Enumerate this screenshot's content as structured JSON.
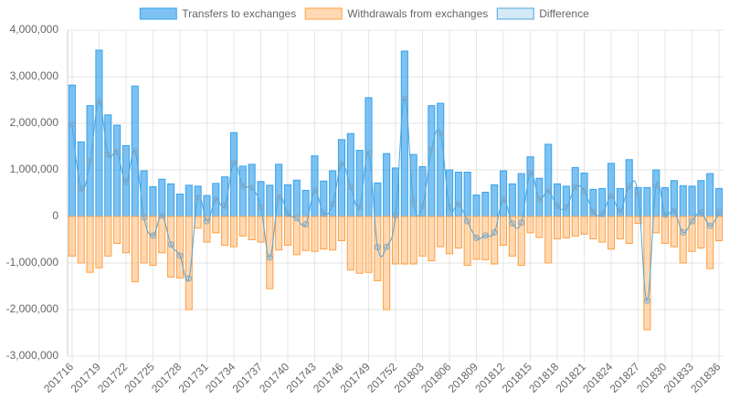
{
  "chart_data": {
    "type": "bar",
    "categories": [
      "201716",
      null,
      null,
      "201719",
      null,
      null,
      "201722",
      null,
      null,
      "201725",
      null,
      null,
      "201728",
      null,
      null,
      "201731",
      null,
      null,
      "201734",
      null,
      null,
      "201737",
      null,
      null,
      "201740",
      null,
      null,
      "201743",
      null,
      null,
      "201746",
      null,
      null,
      "201749",
      null,
      null,
      "201752",
      null,
      null,
      "201803",
      null,
      null,
      "201806",
      null,
      null,
      "201809",
      null,
      null,
      "201812",
      null,
      null,
      "201815",
      null,
      null,
      "201818",
      null,
      null,
      "201821",
      null,
      null,
      "201824",
      null,
      null,
      "201827",
      null,
      null,
      "201830",
      null,
      null,
      "201833",
      null,
      null,
      "201836"
    ],
    "series": [
      {
        "name": "Transfers to exchanges",
        "color": "#36a2eb",
        "values": [
          2820000,
          1600000,
          2380000,
          3570000,
          2180000,
          1960000,
          1520000,
          2800000,
          980000,
          640000,
          800000,
          700000,
          480000,
          670000,
          650000,
          450000,
          710000,
          850000,
          1800000,
          1080000,
          1120000,
          750000,
          670000,
          1120000,
          680000,
          780000,
          560000,
          1300000,
          760000,
          980000,
          1650000,
          1780000,
          1420000,
          2550000,
          720000,
          1350000,
          1040000,
          3550000,
          1330000,
          1070000,
          2380000,
          2430000,
          1000000,
          950000,
          950000,
          460000,
          520000,
          680000,
          980000,
          700000,
          920000,
          1280000,
          820000,
          1550000,
          700000,
          650000,
          1050000,
          930000,
          580000,
          600000,
          1140000,
          600000,
          1220000,
          620000,
          620000,
          1000000,
          620000,
          770000,
          660000,
          650000,
          770000,
          920000,
          600000
        ]
      },
      {
        "name": "Withdrawals from exchanges",
        "color": "#ff9f40",
        "values": [
          -850000,
          -1000000,
          -1200000,
          -1100000,
          -850000,
          -580000,
          -780000,
          -1400000,
          -1000000,
          -1050000,
          -780000,
          -1300000,
          -1320000,
          -2000000,
          -250000,
          -550000,
          -350000,
          -620000,
          -650000,
          -420000,
          -500000,
          -550000,
          -1550000,
          -720000,
          -620000,
          -820000,
          -730000,
          -750000,
          -700000,
          -720000,
          -520000,
          -1150000,
          -1220000,
          -1200000,
          -1380000,
          -2000000,
          -1020000,
          -1020000,
          -1020000,
          -850000,
          -950000,
          -650000,
          -800000,
          -680000,
          -1050000,
          -920000,
          -930000,
          -1020000,
          -620000,
          -850000,
          -1050000,
          -350000,
          -450000,
          -1000000,
          -480000,
          -460000,
          -420000,
          -380000,
          -480000,
          -550000,
          -700000,
          -480000,
          -580000,
          -150000,
          -2430000,
          -350000,
          -580000,
          -650000,
          -1000000,
          -750000,
          -680000,
          -1120000,
          -520000
        ]
      },
      {
        "name": "Difference",
        "type": "line",
        "color": "#4ea6dc",
        "values": [
          1970000,
          600000,
          1180000,
          2470000,
          1330000,
          1380000,
          740000,
          1400000,
          -20000,
          -410000,
          20000,
          -600000,
          -840000,
          -1330000,
          400000,
          -100000,
          360000,
          230000,
          1150000,
          660000,
          620000,
          200000,
          -880000,
          400000,
          60000,
          -40000,
          -170000,
          550000,
          60000,
          260000,
          1130000,
          630000,
          200000,
          1350000,
          -660000,
          -650000,
          20000,
          2530000,
          310000,
          220000,
          1430000,
          1780000,
          200000,
          270000,
          -100000,
          -460000,
          -410000,
          -340000,
          360000,
          -150000,
          -130000,
          930000,
          370000,
          550000,
          220000,
          190000,
          630000,
          550000,
          100000,
          50000,
          440000,
          120000,
          640000,
          470000,
          -1810000,
          650000,
          40000,
          120000,
          -340000,
          -100000,
          90000,
          -200000,
          80000
        ]
      }
    ],
    "ylim": [
      -3000000,
      4000000
    ],
    "yticks": [
      {
        "value": -3000000,
        "label": "-3,000,000"
      },
      {
        "value": -2000000,
        "label": "-2,000,000"
      },
      {
        "value": -1000000,
        "label": "-1,000,000"
      },
      0,
      {
        "value": 1000000,
        "label": "1,000,000"
      },
      {
        "value": 2000000,
        "label": "2,000,000"
      },
      {
        "value": 3000000,
        "label": "3,000,000"
      },
      {
        "value": 4000000,
        "label": "4,000,000"
      }
    ],
    "grid": true,
    "legend": "top"
  }
}
